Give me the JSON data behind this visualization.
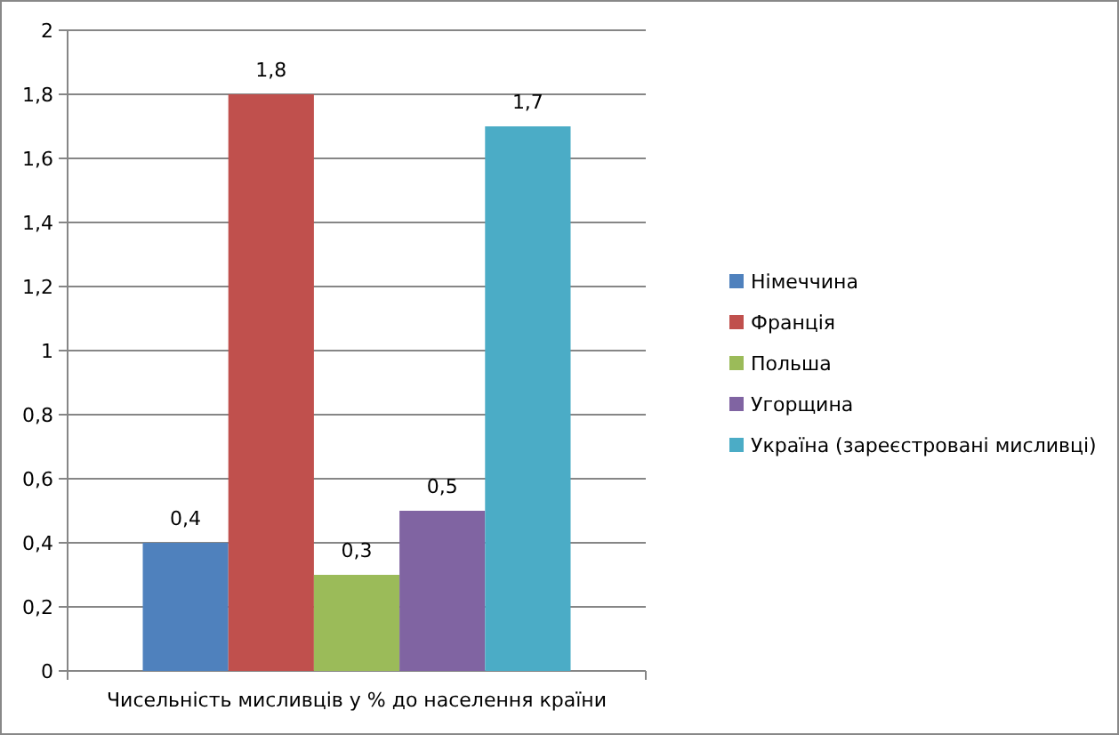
{
  "chart_data": {
    "type": "bar",
    "categories": [
      "Чисельність мисливців у % до населення країни"
    ],
    "series": [
      {
        "name": "Німеччина",
        "color": "#4f81bd",
        "values": [
          0.4
        ],
        "value_labels": [
          "0,4"
        ]
      },
      {
        "name": "Франція",
        "color": "#c0504d",
        "values": [
          1.8
        ],
        "value_labels": [
          "1,8"
        ]
      },
      {
        "name": "Польша",
        "color": "#9bbb59",
        "values": [
          0.3
        ],
        "value_labels": [
          "0,3"
        ]
      },
      {
        "name": "Угорщина",
        "color": "#8064a2",
        "values": [
          0.5
        ],
        "value_labels": [
          "0,5"
        ]
      },
      {
        "name": "Україна (зареєстровані мисливці)",
        "color": "#4bacc6",
        "values": [
          1.7
        ],
        "value_labels": [
          "1,7"
        ]
      }
    ],
    "ylim": [
      0,
      2
    ],
    "yticks": [
      0,
      {
        "value": 0.2,
        "label": "0,2"
      },
      {
        "value": 0.4,
        "label": "0,4"
      },
      {
        "value": 0.6,
        "label": "0,6"
      },
      {
        "value": 0.8,
        "label": "0,8"
      },
      1,
      {
        "value": 1.2,
        "label": "1,2"
      },
      {
        "value": 1.4,
        "label": "1,4"
      },
      {
        "value": 1.6,
        "label": "1,6"
      },
      {
        "value": 1.8,
        "label": "1,8"
      },
      2
    ],
    "grid": "y",
    "legend": "right"
  }
}
